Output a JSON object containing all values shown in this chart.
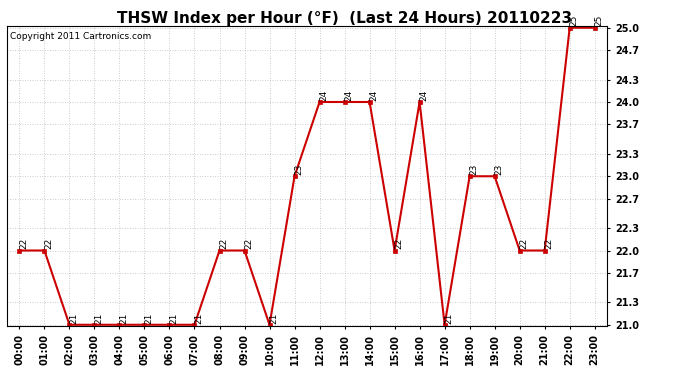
{
  "title": "THSW Index per Hour (°F)  (Last 24 Hours) 20110223",
  "copyright": "Copyright 2011 Cartronics.com",
  "hours": [
    "00:00",
    "01:00",
    "02:00",
    "03:00",
    "04:00",
    "05:00",
    "06:00",
    "07:00",
    "08:00",
    "09:00",
    "10:00",
    "11:00",
    "12:00",
    "13:00",
    "14:00",
    "15:00",
    "16:00",
    "17:00",
    "18:00",
    "19:00",
    "20:00",
    "21:00",
    "22:00",
    "23:00"
  ],
  "values": [
    22,
    22,
    21,
    21,
    21,
    21,
    21,
    21,
    22,
    22,
    21,
    23,
    24,
    24,
    24,
    22,
    24,
    21,
    23,
    23,
    22,
    22,
    25,
    25
  ],
  "ylim_min": 21.0,
  "ylim_max": 25.0,
  "yticks": [
    21.0,
    21.3,
    21.7,
    22.0,
    22.3,
    22.7,
    23.0,
    23.3,
    23.7,
    24.0,
    24.3,
    24.7,
    25.0
  ],
  "line_color": "#cc0000",
  "marker_color": "#cc0000",
  "bg_color": "#ffffff",
  "grid_color": "#bbbbbb",
  "title_fontsize": 11,
  "copyright_fontsize": 6.5,
  "tick_fontsize": 7,
  "label_fontsize": 7
}
